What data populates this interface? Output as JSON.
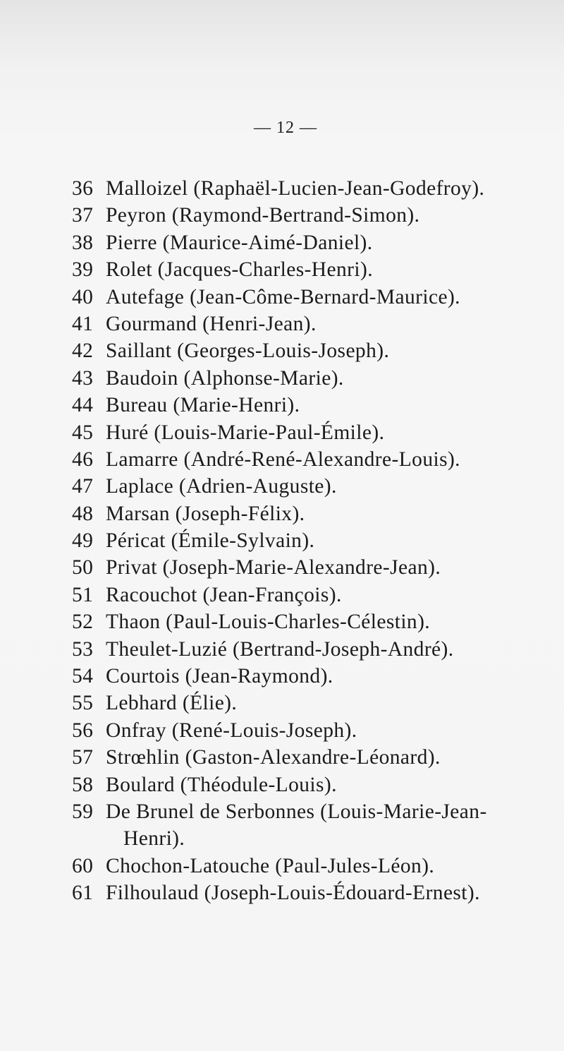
{
  "page_number": "— 12 —",
  "entries": [
    {
      "number": "36",
      "lines": [
        "Malloizel (Raphaël-Lucien-Jean-Godefroy)."
      ]
    },
    {
      "number": "37",
      "lines": [
        "Peyron (Raymond-Bertrand-Simon)."
      ]
    },
    {
      "number": "38",
      "lines": [
        "Pierre (Maurice-Aimé-Daniel)."
      ]
    },
    {
      "number": "39",
      "lines": [
        "Rolet (Jacques-Charles-Henri)."
      ]
    },
    {
      "number": "40",
      "lines": [
        "Autefage (Jean-Côme-Bernard-Maurice)."
      ]
    },
    {
      "number": "41",
      "lines": [
        "Gourmand (Henri-Jean)."
      ]
    },
    {
      "number": "42",
      "lines": [
        "Saillant (Georges-Louis-Joseph)."
      ]
    },
    {
      "number": "43",
      "lines": [
        "Baudoin (Alphonse-Marie)."
      ]
    },
    {
      "number": "44",
      "lines": [
        "Bureau (Marie-Henri)."
      ]
    },
    {
      "number": "45",
      "lines": [
        "Huré (Louis-Marie-Paul-Émile)."
      ]
    },
    {
      "number": "46",
      "lines": [
        "Lamarre (André-René-Alexandre-Louis)."
      ]
    },
    {
      "number": "47",
      "lines": [
        "Laplace (Adrien-Auguste)."
      ]
    },
    {
      "number": "48",
      "lines": [
        "Marsan (Joseph-Félix)."
      ]
    },
    {
      "number": "49",
      "lines": [
        "Péricat (Émile-Sylvain)."
      ]
    },
    {
      "number": "50",
      "lines": [
        "Privat (Joseph-Marie-Alexandre-Jean)."
      ]
    },
    {
      "number": "51",
      "lines": [
        "Racouchot (Jean-François)."
      ]
    },
    {
      "number": "52",
      "lines": [
        "Thaon (Paul-Louis-Charles-Célestin)."
      ]
    },
    {
      "number": "53",
      "lines": [
        "Theulet-Luzié (Bertrand-Joseph-André)."
      ]
    },
    {
      "number": "54",
      "lines": [
        "Courtois (Jean-Raymond)."
      ]
    },
    {
      "number": "55",
      "lines": [
        "Lebhard (Élie)."
      ]
    },
    {
      "number": "56",
      "lines": [
        "Onfray (René-Louis-Joseph)."
      ]
    },
    {
      "number": "57",
      "lines": [
        "Strœhlin (Gaston-Alexandre-Léonard)."
      ]
    },
    {
      "number": "58",
      "lines": [
        "Boulard (Théodule-Louis)."
      ]
    },
    {
      "number": "59",
      "lines": [
        "De Brunel de Serbonnes (Louis-Marie-Jean-",
        "Henri)."
      ]
    },
    {
      "number": "60",
      "lines": [
        "Chochon-Latouche (Paul-Jules-Léon)."
      ]
    },
    {
      "number": "61",
      "lines": [
        "Filhoulaud (Joseph-Louis-Édouard-Ernest)."
      ]
    }
  ]
}
